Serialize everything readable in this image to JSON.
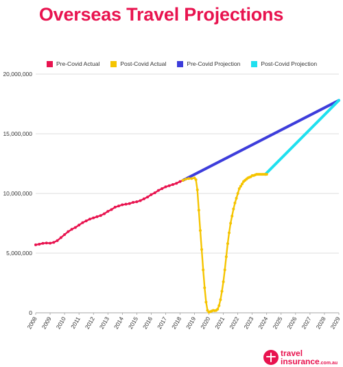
{
  "title": "Overseas Travel Projections",
  "logo": {
    "line1": "travel",
    "line2": "insurance",
    "tld": ".com.au"
  },
  "chart_data": {
    "type": "line",
    "title": "Overseas Travel Projections",
    "xlabel": "",
    "ylabel": "",
    "ylim": [
      0,
      20000000
    ],
    "xlim": [
      2008,
      2029
    ],
    "yticks": [
      0,
      5000000,
      10000000,
      15000000,
      20000000
    ],
    "ytick_labels": [
      "0",
      "5,000,000",
      "10,000,000",
      "15,000,000",
      "20,000,000"
    ],
    "xticks": [
      "2008",
      "2009",
      "2010",
      "2011",
      "2012",
      "2013",
      "2014",
      "2015",
      "2016",
      "2017",
      "2018",
      "2019",
      "2020",
      "2021",
      "2022",
      "2023",
      "2024",
      "2025",
      "2026",
      "2027",
      "2028",
      "2029"
    ],
    "grid": "horizontal",
    "legend_position": "top",
    "series": [
      {
        "name": "Pre-Covid Actual",
        "color": "#e8134f",
        "markers": true,
        "x": [
          2008.0,
          2008.25,
          2008.5,
          2008.75,
          2009.0,
          2009.25,
          2009.5,
          2009.75,
          2010.0,
          2010.25,
          2010.5,
          2010.75,
          2011.0,
          2011.25,
          2011.5,
          2011.75,
          2012.0,
          2012.25,
          2012.5,
          2012.75,
          2013.0,
          2013.25,
          2013.5,
          2013.75,
          2014.0,
          2014.25,
          2014.5,
          2014.75,
          2015.0,
          2015.25,
          2015.5,
          2015.75,
          2016.0,
          2016.25,
          2016.5,
          2016.75,
          2017.0,
          2017.25,
          2017.5,
          2017.75,
          2018.0,
          2018.2
        ],
        "y": [
          5700000,
          5750000,
          5820000,
          5850000,
          5830000,
          5900000,
          6050000,
          6300000,
          6550000,
          6800000,
          7000000,
          7150000,
          7350000,
          7550000,
          7700000,
          7850000,
          7950000,
          8050000,
          8150000,
          8300000,
          8500000,
          8650000,
          8850000,
          8950000,
          9050000,
          9100000,
          9150000,
          9250000,
          9300000,
          9400000,
          9550000,
          9700000,
          9900000,
          10050000,
          10250000,
          10400000,
          10550000,
          10650000,
          10750000,
          10850000,
          11000000,
          11100000
        ]
      },
      {
        "name": "Post-Covid Actual",
        "color": "#f5c400",
        "markers": true,
        "x": [
          2018.2,
          2018.4,
          2018.6,
          2018.8,
          2019.0,
          2019.1,
          2019.2,
          2019.3,
          2019.4,
          2019.5,
          2019.6,
          2019.7,
          2019.8,
          2019.9,
          2020.0,
          2020.1,
          2020.2,
          2020.3,
          2020.4,
          2020.5,
          2020.6,
          2020.7,
          2020.8,
          2020.9,
          2021.0,
          2021.1,
          2021.2,
          2021.3,
          2021.4,
          2021.5,
          2021.6,
          2021.7,
          2021.8,
          2021.9,
          2022.0,
          2022.1,
          2022.2,
          2022.3,
          2022.4,
          2022.5,
          2022.6,
          2022.7,
          2022.8,
          2022.9,
          2023.0,
          2023.1,
          2023.2,
          2023.3,
          2023.4,
          2023.5,
          2023.6,
          2023.7,
          2023.8,
          2023.9,
          2024.0
        ],
        "y": [
          11100000,
          11200000,
          11250000,
          11250000,
          11300000,
          11150000,
          10300000,
          8600000,
          6900000,
          5300000,
          3600000,
          2100000,
          900000,
          200000,
          50000,
          100000,
          150000,
          200000,
          180000,
          200000,
          300000,
          600000,
          1100000,
          1800000,
          2600000,
          3600000,
          4700000,
          5800000,
          6700000,
          7500000,
          8100000,
          8700000,
          9200000,
          9600000,
          10000000,
          10400000,
          10600000,
          10800000,
          11000000,
          11100000,
          11200000,
          11300000,
          11350000,
          11400000,
          11500000,
          11500000,
          11550000,
          11600000,
          11600000,
          11600000,
          11600000,
          11600000,
          11600000,
          11600000,
          11600000
        ]
      },
      {
        "name": "Pre-Covid Projection",
        "color": "#3d3ddb",
        "markers": false,
        "x": [
          2018.2,
          2029.0
        ],
        "y": [
          11100000,
          17800000
        ]
      },
      {
        "name": "Post-Covid Projection",
        "color": "#1fe0ef",
        "markers": false,
        "x": [
          2023.9,
          2029.0
        ],
        "y": [
          11600000,
          17800000
        ]
      }
    ]
  }
}
